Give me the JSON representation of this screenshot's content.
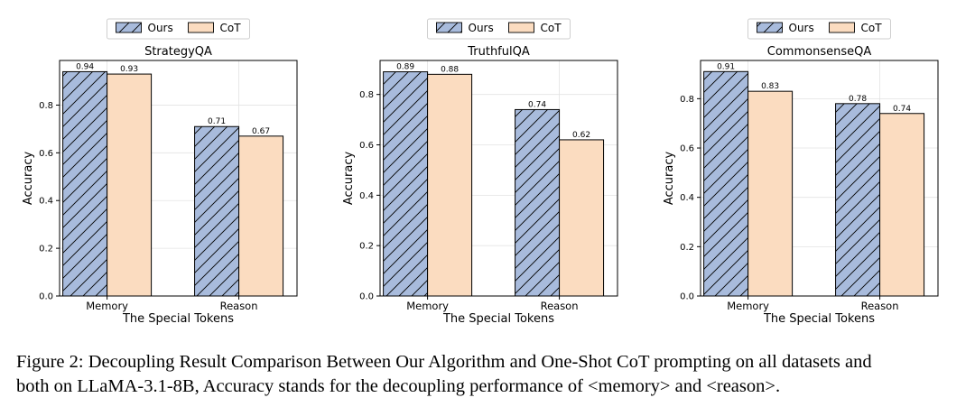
{
  "figure": {
    "caption_line1": "Figure 2: Decoupling Result Comparison Between Our Algorithm and One-Shot CoT prompting on all datasets and",
    "caption_line2": "both on LLaMA-3.1-8B, Accuracy stands for the decoupling performance of <memory> and <reason>."
  },
  "colors": {
    "ours": "#a8bbdc",
    "cot": "#fbdcc0",
    "edge": "#000000",
    "grid": "#e3e3e3"
  },
  "chart_data": [
    {
      "type": "bar",
      "title": "StrategyQA",
      "xlabel": "The Special Tokens",
      "ylabel": "Accuracy",
      "categories": [
        "Memory",
        "Reason"
      ],
      "series": [
        {
          "name": "Ours",
          "values": [
            0.94,
            0.71
          ],
          "labels": [
            "0.94",
            "0.71"
          ],
          "hatch": true
        },
        {
          "name": "CoT",
          "values": [
            0.93,
            0.67
          ],
          "labels": [
            "0.93",
            "0.67"
          ],
          "hatch": false
        }
      ],
      "ylim": [
        0,
        0.987
      ],
      "yticks": [
        0.0,
        0.2,
        0.4,
        0.6,
        0.8
      ],
      "ytick_labels": [
        "0.0",
        "0.2",
        "0.4",
        "0.6",
        "0.8"
      ],
      "grid": true,
      "legend": {
        "position": "top-center-outside",
        "entries": [
          "Ours",
          "CoT"
        ]
      }
    },
    {
      "type": "bar",
      "title": "TruthfulQA",
      "xlabel": "The Special Tokens",
      "ylabel": "Accuracy",
      "categories": [
        "Memory",
        "Reason"
      ],
      "series": [
        {
          "name": "Ours",
          "values": [
            0.89,
            0.74
          ],
          "labels": [
            "0.89",
            "0.74"
          ],
          "hatch": true
        },
        {
          "name": "CoT",
          "values": [
            0.88,
            0.62
          ],
          "labels": [
            "0.88",
            "0.62"
          ],
          "hatch": false
        }
      ],
      "ylim": [
        0,
        0.935
      ],
      "yticks": [
        0.0,
        0.2,
        0.4,
        0.6,
        0.8
      ],
      "ytick_labels": [
        "0.0",
        "0.2",
        "0.4",
        "0.6",
        "0.8"
      ],
      "grid": true,
      "legend": {
        "position": "top-center-outside",
        "entries": [
          "Ours",
          "CoT"
        ]
      }
    },
    {
      "type": "bar",
      "title": "CommonsenseQA",
      "xlabel": "The Special Tokens",
      "ylabel": "Accuracy",
      "categories": [
        "Memory",
        "Reason"
      ],
      "series": [
        {
          "name": "Ours",
          "values": [
            0.91,
            0.78
          ],
          "labels": [
            "0.91",
            "0.78"
          ],
          "hatch": true
        },
        {
          "name": "CoT",
          "values": [
            0.83,
            0.74
          ],
          "labels": [
            "0.83",
            "0.74"
          ],
          "hatch": false
        }
      ],
      "ylim": [
        0,
        0.955
      ],
      "yticks": [
        0.0,
        0.2,
        0.4,
        0.6,
        0.8
      ],
      "ytick_labels": [
        "0.0",
        "0.2",
        "0.4",
        "0.6",
        "0.8"
      ],
      "grid": true,
      "legend": {
        "position": "top-center-outside",
        "entries": [
          "Ours",
          "CoT"
        ]
      }
    }
  ]
}
